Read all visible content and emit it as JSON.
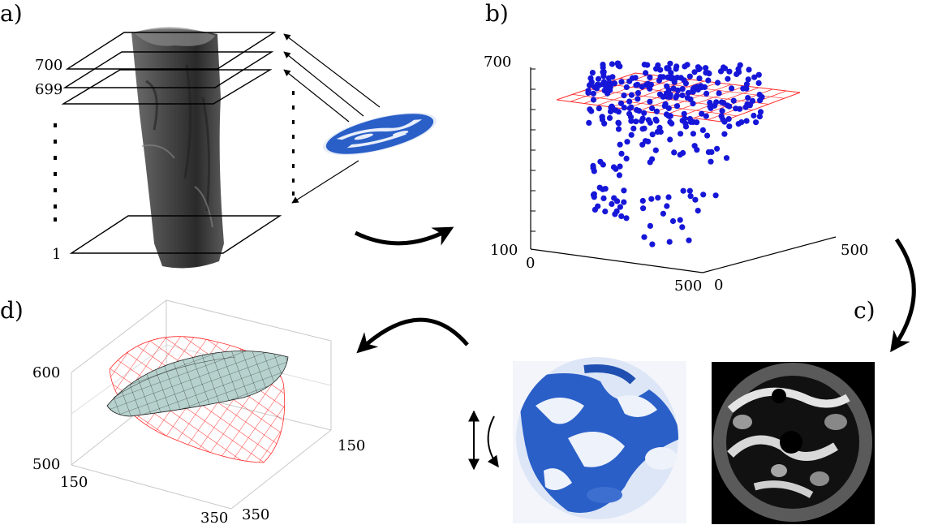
{
  "panels": {
    "a": {
      "label": "a)",
      "slice_labels": [
        "700",
        "699",
        "1"
      ]
    },
    "b": {
      "label": "b)",
      "z_ticks": [
        "700",
        "100"
      ],
      "x_ticks": [
        "0",
        "500"
      ],
      "y_ticks": [
        "0",
        "500"
      ],
      "point_color": "#1616d8",
      "plane_color": "#ff2a2a"
    },
    "c": {
      "label": "c)"
    },
    "d": {
      "label": "d)",
      "z_ticks": [
        "600",
        "500"
      ],
      "x_ticks": [
        "150",
        "350"
      ],
      "y_ticks": [
        "150",
        "350"
      ],
      "grid_color": "#ff2a2a",
      "surface_color": "#b8d3cf"
    }
  },
  "colors": {
    "stain_blue": "#2a5fc8",
    "ct_background": "#000000"
  }
}
